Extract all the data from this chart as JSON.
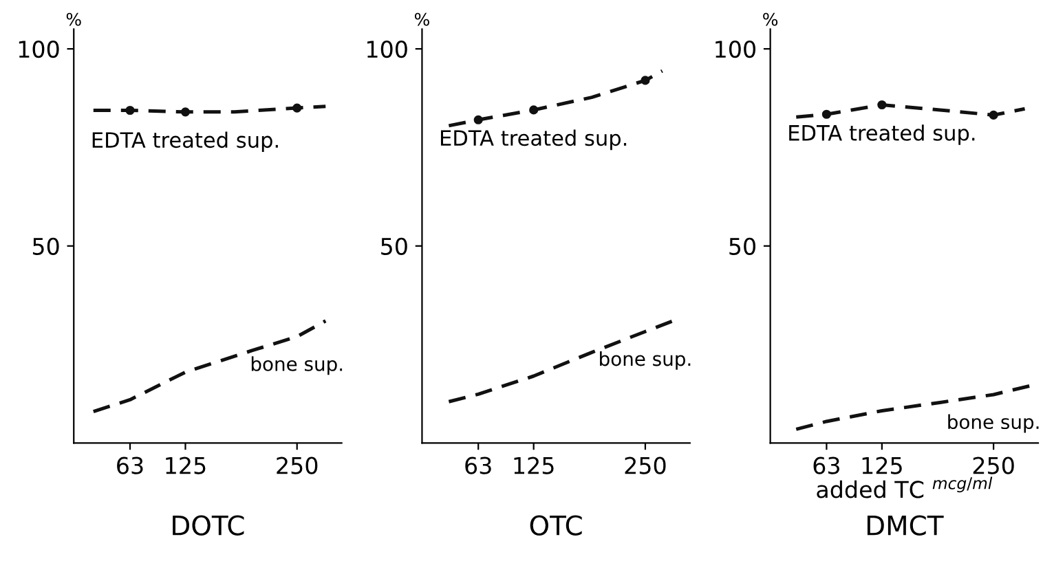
{
  "chart_data": [
    {
      "type": "line",
      "title": "DOTC",
      "ylabel": "%",
      "xlim": [
        0,
        300
      ],
      "ylim": [
        0,
        105
      ],
      "xticks": [
        63,
        125,
        250
      ],
      "yticks": [
        50,
        100
      ],
      "grid": false,
      "legend": false,
      "line_style": "dashed",
      "series": [
        {
          "name": "EDTA treated sup.",
          "color": "#111111",
          "x": [
            22,
            63,
            125,
            180,
            250,
            282
          ],
          "values": [
            84.4,
            84.4,
            84,
            84,
            85,
            85.4
          ]
        },
        {
          "type": "scatter",
          "marker": "circle",
          "color": "#111111",
          "x": [
            63,
            125,
            250
          ],
          "values": [
            84.4,
            84,
            85
          ]
        },
        {
          "name": "bone sup.",
          "color": "#111111",
          "x": [
            22,
            63,
            125,
            200,
            250,
            282
          ],
          "values": [
            8,
            11,
            18,
            23.5,
            27,
            31
          ]
        }
      ]
    },
    {
      "type": "line",
      "title": "OTC",
      "ylabel": "%",
      "xlim": [
        0,
        300
      ],
      "ylim": [
        0,
        105
      ],
      "xticks": [
        63,
        125,
        250
      ],
      "yticks": [
        50,
        100
      ],
      "grid": false,
      "legend": false,
      "line_style": "dashed",
      "series": [
        {
          "name": "EDTA treated sup.",
          "color": "#111111",
          "x": [
            30,
            63,
            125,
            190,
            250,
            269
          ],
          "values": [
            80.5,
            82,
            84.5,
            87.7,
            92,
            94.4
          ]
        },
        {
          "type": "scatter",
          "marker": "circle",
          "color": "#111111",
          "x": [
            63,
            125,
            250
          ],
          "values": [
            82,
            84.5,
            92
          ]
        },
        {
          "name": "bone sup.",
          "color": "#111111",
          "x": [
            30,
            63,
            125,
            190,
            250,
            281
          ],
          "values": [
            10.5,
            12.4,
            17,
            23,
            28.3,
            31
          ]
        }
      ]
    },
    {
      "type": "line",
      "title": "DMCT",
      "ylabel": "%",
      "xlabel": "added TC $^{mcg/ml}$",
      "xlim": [
        0,
        300
      ],
      "ylim": [
        0,
        105
      ],
      "xticks": [
        63,
        125,
        250
      ],
      "yticks": [
        50,
        100
      ],
      "grid": false,
      "legend": false,
      "line_style": "dashed",
      "series": [
        {
          "name": "EDTA treated sup.",
          "color": "#111111",
          "x": [
            29,
            63,
            125,
            190,
            250,
            285
          ],
          "values": [
            82.7,
            83.4,
            85.8,
            84.5,
            83.2,
            84.8
          ]
        },
        {
          "type": "scatter",
          "marker": "circle",
          "color": "#111111",
          "x": [
            63,
            125,
            250
          ],
          "values": [
            83.4,
            85.8,
            83.2
          ]
        },
        {
          "name": "bone sup.",
          "color": "#111111",
          "x": [
            29,
            63,
            125,
            190,
            250,
            296
          ],
          "values": [
            3.5,
            5.5,
            8.2,
            10.3,
            12.3,
            14.8
          ]
        }
      ]
    }
  ]
}
